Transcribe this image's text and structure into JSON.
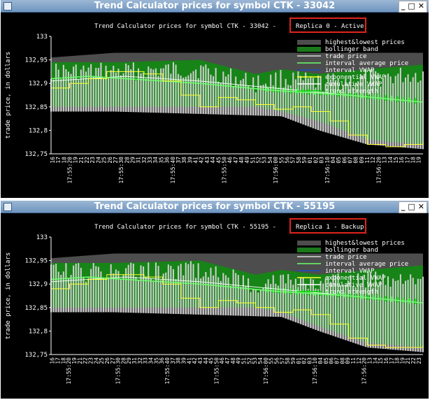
{
  "windows": [
    {
      "id": "win0",
      "window_title": "Trend Calculator prices for symbol CTK - 33042",
      "chart_title_prefix": "Trend Calculator prices for symbol CTK - 33042 -",
      "chart_title_badge": "Replica 0 - Active",
      "x_time_labels": [
        "17:55:20",
        "17:55:30",
        "17:55:40",
        "17:55:50",
        "17:56:00",
        "17:56:10",
        "17:56:20"
      ],
      "x_seconds": [
        "16",
        "17",
        "18",
        "19",
        "21",
        "22",
        "23",
        "24",
        "25",
        "26",
        "27",
        "28",
        "29",
        "31",
        "32",
        "33",
        "34",
        "35",
        "36",
        "37",
        "38",
        "39",
        "41",
        "42",
        "43",
        "44",
        "45",
        "46",
        "47",
        "48",
        "49",
        "51",
        "52",
        "53",
        "54",
        "55",
        "56",
        "57",
        "58",
        "59",
        "01",
        "02",
        "03",
        "04",
        "05",
        "06",
        "07",
        "08",
        "09",
        "11",
        "12",
        "13",
        "14",
        "15",
        "16",
        "17",
        "18",
        "19"
      ]
    },
    {
      "id": "win1",
      "window_title": "Trend Calculator prices for symbol CTK - 55195",
      "chart_title_prefix": "Trend Calculator prices for symbol CTK - 55195 -",
      "chart_title_badge": "Replica 1 - Backup",
      "x_time_labels": [
        "17:55:20",
        "17:55:30",
        "17:55:40",
        "17:55:50",
        "17:56:00",
        "17:56:10",
        "17:56:20"
      ],
      "x_seconds": [
        "16",
        "17",
        "18",
        "19",
        "21",
        "22",
        "23",
        "24",
        "25",
        "26",
        "27",
        "28",
        "29",
        "31",
        "32",
        "33",
        "34",
        "35",
        "36",
        "37",
        "38",
        "39",
        "41",
        "42",
        "43",
        "44",
        "45",
        "46",
        "47",
        "48",
        "49",
        "51",
        "52",
        "53",
        "54",
        "55",
        "56",
        "57",
        "58",
        "59",
        "01",
        "02",
        "03",
        "04",
        "05",
        "06",
        "07",
        "08",
        "09",
        "11",
        "12",
        "13",
        "14",
        "15",
        "16",
        "17",
        "18",
        "19",
        "21",
        "22",
        "23"
      ]
    }
  ],
  "window_controls": {
    "minimize": "_",
    "maximize": "□",
    "close": "✕"
  },
  "chart_common": {
    "ylabel": "trade price, in dollars",
    "ytick_labels": [
      "133",
      "132,95",
      "132,9",
      "132,85",
      "132,8",
      "132,75"
    ],
    "yticks": [
      133,
      132.95,
      132.9,
      132.85,
      132.8,
      132.75
    ],
    "ylim": [
      132.75,
      133.0
    ],
    "legend": [
      {
        "label": "highest&lowest prices",
        "color": "#4d4d4d",
        "kind": "box"
      },
      {
        "label": "bollinger band",
        "color": "#1a7a1a",
        "kind": "box"
      },
      {
        "label": "trade price",
        "color": "#d8d8d8",
        "kind": "line"
      },
      {
        "label": "interval average price",
        "color": "#6cff6c",
        "kind": "line"
      },
      {
        "label": "interval VWAP",
        "color": "#1a4fbf",
        "kind": "line"
      },
      {
        "label": "exponential VWAP",
        "color": "#ffff2e",
        "kind": "line"
      },
      {
        "label": "cumulative VWAP",
        "color": "#ffffff",
        "kind": "line"
      },
      {
        "label": "trend strength",
        "color": "#00d000",
        "kind": "line"
      }
    ]
  },
  "chart_data": [
    {
      "type": "area",
      "title": "Trend Calculator prices for symbol CTK - 33042 - Replica 0 - Active",
      "ylabel": "trade price, in dollars",
      "ylim": [
        132.75,
        133.0
      ],
      "series": [
        {
          "name": "highest&lowest prices",
          "x": [
            0,
            0.17,
            0.4,
            0.62,
            0.72,
            0.85,
            1
          ],
          "y_high": [
            132.955,
            132.965,
            132.965,
            132.965,
            132.965,
            132.965,
            132.965
          ],
          "y_low": [
            132.84,
            132.84,
            132.835,
            132.83,
            132.8,
            132.77,
            132.76
          ]
        },
        {
          "name": "bollinger band",
          "x": [
            0,
            0.17,
            0.4,
            0.55,
            0.62,
            0.72,
            0.85,
            1
          ],
          "y_high": [
            132.945,
            132.945,
            132.95,
            132.92,
            132.93,
            132.92,
            132.93,
            132.94
          ],
          "y_low": [
            132.85,
            132.85,
            132.85,
            132.85,
            132.84,
            132.82,
            132.78,
            132.77
          ]
        },
        {
          "name": "interval average price",
          "x": [
            0,
            0.1,
            0.2,
            0.4,
            0.6,
            0.8,
            1
          ],
          "y": [
            132.91,
            132.915,
            132.91,
            132.9,
            132.885,
            132.875,
            132.86
          ]
        },
        {
          "name": "exponential VWAP",
          "x": [
            0,
            0.05,
            0.1,
            0.15,
            0.2,
            0.25,
            0.3,
            0.35,
            0.4,
            0.45,
            0.5,
            0.55,
            0.6,
            0.65,
            0.7,
            0.75,
            0.8,
            0.85,
            0.9,
            0.95,
            1
          ],
          "y": [
            132.89,
            132.9,
            132.91,
            132.925,
            132.925,
            132.92,
            132.905,
            132.875,
            132.85,
            132.87,
            132.865,
            132.855,
            132.845,
            132.85,
            132.84,
            132.82,
            132.79,
            132.77,
            132.765,
            132.77,
            132.775
          ]
        },
        {
          "name": "cumulative VWAP",
          "x": [
            0,
            0.2,
            0.4,
            0.6,
            0.8,
            1
          ],
          "y": [
            132.905,
            132.915,
            132.905,
            132.89,
            132.875,
            132.86
          ]
        }
      ]
    },
    {
      "type": "area",
      "title": "Trend Calculator prices for symbol CTK - 55195 - Replica 1 - Backup",
      "ylabel": "trade price, in dollars",
      "ylim": [
        132.75,
        133.0
      ],
      "series": [
        {
          "name": "highest&lowest prices",
          "x": [
            0,
            0.17,
            0.4,
            0.62,
            0.72,
            0.85,
            1
          ],
          "y_high": [
            132.955,
            132.965,
            132.965,
            132.965,
            132.965,
            132.965,
            132.965
          ],
          "y_low": [
            132.84,
            132.84,
            132.835,
            132.83,
            132.8,
            132.765,
            132.755
          ]
        },
        {
          "name": "bollinger band",
          "x": [
            0,
            0.17,
            0.4,
            0.55,
            0.62,
            0.72,
            0.85,
            1
          ],
          "y_high": [
            132.945,
            132.945,
            132.95,
            132.92,
            132.93,
            132.92,
            132.93,
            132.94
          ],
          "y_low": [
            132.85,
            132.85,
            132.85,
            132.85,
            132.84,
            132.81,
            132.775,
            132.765
          ]
        },
        {
          "name": "interval average price",
          "x": [
            0,
            0.1,
            0.2,
            0.4,
            0.6,
            0.8,
            1
          ],
          "y": [
            132.91,
            132.915,
            132.91,
            132.9,
            132.885,
            132.875,
            132.86
          ]
        },
        {
          "name": "exponential VWAP",
          "x": [
            0,
            0.05,
            0.1,
            0.15,
            0.2,
            0.25,
            0.3,
            0.35,
            0.4,
            0.45,
            0.5,
            0.55,
            0.6,
            0.65,
            0.7,
            0.75,
            0.8,
            0.85,
            0.9,
            0.95,
            1
          ],
          "y": [
            132.89,
            132.9,
            132.91,
            132.92,
            132.92,
            132.915,
            132.9,
            132.87,
            132.85,
            132.865,
            132.86,
            132.85,
            132.84,
            132.845,
            132.835,
            132.815,
            132.785,
            132.77,
            132.765,
            132.765,
            132.77
          ]
        },
        {
          "name": "cumulative VWAP",
          "x": [
            0,
            0.2,
            0.4,
            0.6,
            0.8,
            1
          ],
          "y": [
            132.905,
            132.915,
            132.905,
            132.89,
            132.875,
            132.86
          ]
        }
      ]
    }
  ]
}
